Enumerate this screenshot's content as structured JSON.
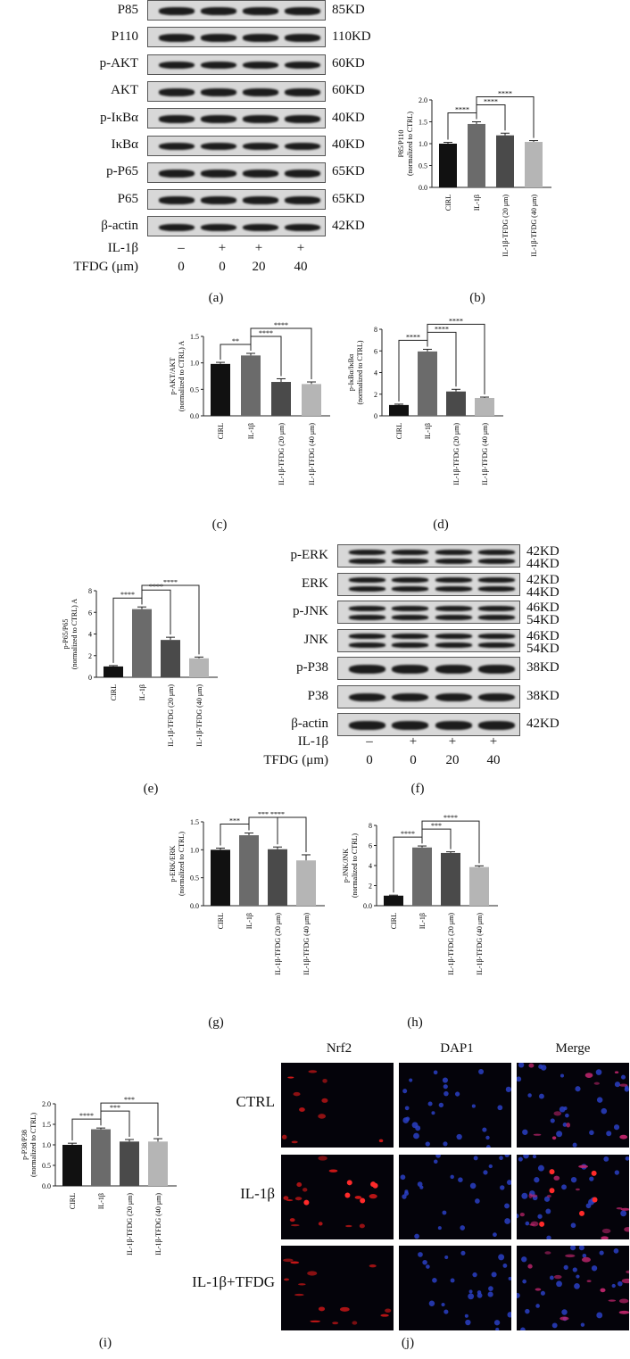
{
  "panel_labels": [
    "(a)",
    "(b)",
    "(c)",
    "(d)",
    "(e)",
    "(f)",
    "(g)",
    "(h)",
    "(i)",
    "(j)"
  ],
  "blot_a": {
    "rows": [
      {
        "label": "P85",
        "kd": "85KD"
      },
      {
        "label": "P110",
        "kd": "110KD"
      },
      {
        "label": "p-AKT",
        "kd": "60KD"
      },
      {
        "label": "AKT",
        "kd": "60KD"
      },
      {
        "label": "p-IκBα",
        "kd": "40KD"
      },
      {
        "label": "IκBα",
        "kd": "40KD"
      },
      {
        "label": "p-P65",
        "kd": "65KD"
      },
      {
        "label": "P65",
        "kd": "65KD"
      },
      {
        "label": "β-actin",
        "kd": "42KD"
      }
    ],
    "group_rows": [
      {
        "label": "IL-1β",
        "values": [
          "–",
          "+",
          "+",
          "+"
        ]
      },
      {
        "label": "TFDG (μm)",
        "values": [
          "0",
          "0",
          "20",
          "40"
        ]
      }
    ]
  },
  "blot_f": {
    "rows": [
      {
        "label": "p-ERK",
        "kd": [
          "42KD",
          "44KD"
        ]
      },
      {
        "label": "ERK",
        "kd": [
          "42KD",
          "44KD"
        ]
      },
      {
        "label": "p-JNK",
        "kd": [
          "46KD",
          "54KD"
        ]
      },
      {
        "label": "JNK",
        "kd": [
          "46KD",
          "54KD"
        ]
      },
      {
        "label": "p-P38",
        "kd": [
          "38KD"
        ]
      },
      {
        "label": "P38",
        "kd": [
          "38KD"
        ]
      },
      {
        "label": "β-actin",
        "kd": [
          "42KD"
        ]
      }
    ],
    "group_rows": [
      {
        "label": "IL-1β",
        "values": [
          "–",
          "+",
          "+",
          "+"
        ]
      },
      {
        "label": "TFDG (μm)",
        "values": [
          "0",
          "0",
          "20",
          "40"
        ]
      }
    ]
  },
  "chart_data": [
    {
      "panel": "b",
      "type": "bar",
      "categories": [
        "CIRL",
        "IL-1β",
        "IL-1β-TFDG (20 μm)",
        "IL-1β-TFDG (40 μm)"
      ],
      "values": [
        1.0,
        1.45,
        1.19,
        1.04
      ],
      "errors": [
        0.03,
        0.05,
        0.05,
        0.03
      ],
      "colors": [
        "#111111",
        "#6b6b6b",
        "#4a4a4a",
        "#b5b5b5"
      ],
      "ylabel": [
        "P85/P110",
        "(normalized to CTRL)"
      ],
      "ylim": [
        0,
        2.0
      ],
      "yticks": [
        "0.0",
        "0.5",
        "1.0",
        "1.5",
        "2.0"
      ],
      "significance": [
        {
          "from": 0,
          "to": 1,
          "label": "****"
        },
        {
          "from": 1,
          "to": 2,
          "label": "****"
        },
        {
          "from": 1,
          "to": 3,
          "label": "****"
        }
      ]
    },
    {
      "panel": "c",
      "type": "bar",
      "categories": [
        "CIRL",
        "IL-1β",
        "IL-1β-TFDG (20 μm)",
        "IL-1β-TFDG (40 μm)"
      ],
      "values": [
        0.98,
        1.14,
        0.64,
        0.6
      ],
      "errors": [
        0.03,
        0.04,
        0.06,
        0.04
      ],
      "colors": [
        "#111111",
        "#6b6b6b",
        "#4a4a4a",
        "#b5b5b5"
      ],
      "ylabel": [
        "p-AKT/AKT",
        "(normalized to CTRL) A"
      ],
      "ylim": [
        0,
        1.5
      ],
      "yticks": [
        "0.0",
        "0.5",
        "1.0",
        "1.5"
      ],
      "significance": [
        {
          "from": 0,
          "to": 1,
          "label": "**"
        },
        {
          "from": 1,
          "to": 2,
          "label": "****"
        },
        {
          "from": 1,
          "to": 3,
          "label": "****"
        }
      ]
    },
    {
      "panel": "d",
      "type": "bar",
      "categories": [
        "CIRL",
        "IL-1β",
        "IL-1β-TFDG (20 μm)",
        "IL-1β-TFDG (40 μm)"
      ],
      "values": [
        1.0,
        5.95,
        2.25,
        1.65
      ],
      "errors": [
        0.08,
        0.2,
        0.2,
        0.08
      ],
      "colors": [
        "#111111",
        "#6b6b6b",
        "#4a4a4a",
        "#b5b5b5"
      ],
      "ylabel": [
        "p-IκBα/IκBα",
        "(normalized to CTRL)"
      ],
      "ylim": [
        0,
        8
      ],
      "yticks": [
        "0",
        "2",
        "4",
        "6",
        "8"
      ],
      "significance": [
        {
          "from": 0,
          "to": 1,
          "label": "****"
        },
        {
          "from": 1,
          "to": 2,
          "label": "****"
        },
        {
          "from": 1,
          "to": 3,
          "label": "****"
        }
      ]
    },
    {
      "panel": "e",
      "type": "bar",
      "categories": [
        "CIRL",
        "IL-1β",
        "IL-1β-TFDG (20 μm)",
        "IL-1β-TFDG (40 μm)"
      ],
      "values": [
        1.0,
        6.3,
        3.45,
        1.75
      ],
      "errors": [
        0.08,
        0.2,
        0.25,
        0.12
      ],
      "colors": [
        "#111111",
        "#6b6b6b",
        "#4a4a4a",
        "#b5b5b5"
      ],
      "ylabel": [
        "p-P65/P65",
        "(normalized to CTRL) A"
      ],
      "ylim": [
        0,
        8
      ],
      "yticks": [
        "0",
        "2",
        "4",
        "6",
        "8"
      ],
      "significance": [
        {
          "from": 0,
          "to": 1,
          "label": "****"
        },
        {
          "from": 1,
          "to": 2,
          "label": "****"
        },
        {
          "from": 1,
          "to": 3,
          "label": "****"
        }
      ]
    },
    {
      "panel": "g",
      "type": "bar",
      "categories": [
        "CIRL",
        "IL-1β",
        "IL-1β-TFDG (20 μm)",
        "IL-1β-TFDG (40 μm)"
      ],
      "values": [
        1.0,
        1.26,
        1.01,
        0.81
      ],
      "errors": [
        0.03,
        0.04,
        0.04,
        0.1
      ],
      "colors": [
        "#111111",
        "#6b6b6b",
        "#4a4a4a",
        "#b5b5b5"
      ],
      "ylabel": [
        "p-ERK/ERK",
        "(normalized to CTRL)"
      ],
      "ylim": [
        0,
        1.5
      ],
      "yticks": [
        "0.0",
        "0.5",
        "1.0",
        "1.5"
      ],
      "significance": [
        {
          "from": 0,
          "to": 1,
          "label": "***"
        },
        {
          "from": 1,
          "to": 2,
          "label": "***"
        },
        {
          "from": 1,
          "to": 3,
          "label": "****"
        }
      ]
    },
    {
      "panel": "h",
      "type": "bar",
      "categories": [
        "CIRL",
        "IL-1β",
        "IL-1β-TFDG (20 μm)",
        "IL-1β-TFDG (40 μm)"
      ],
      "values": [
        1.0,
        5.8,
        5.25,
        3.85
      ],
      "errors": [
        0.05,
        0.15,
        0.12,
        0.12
      ],
      "colors": [
        "#111111",
        "#6b6b6b",
        "#4a4a4a",
        "#b5b5b5"
      ],
      "ylabel": [
        "p-JNK/JNK",
        "(normalized to CTRL)"
      ],
      "ylim": [
        0,
        8
      ],
      "yticks": [
        "0.0",
        "2",
        "4",
        "6",
        "8"
      ],
      "significance": [
        {
          "from": 0,
          "to": 1,
          "label": "****"
        },
        {
          "from": 1,
          "to": 2,
          "label": "***"
        },
        {
          "from": 1,
          "to": 3,
          "label": "****"
        }
      ]
    },
    {
      "panel": "i",
      "type": "bar",
      "categories": [
        "CIRL",
        "IL-1β",
        "IL-1β-TFDG (20 μm)",
        "IL-1β-TFDG (40 μm)"
      ],
      "values": [
        1.0,
        1.38,
        1.08,
        1.08
      ],
      "errors": [
        0.04,
        0.03,
        0.05,
        0.07
      ],
      "colors": [
        "#111111",
        "#6b6b6b",
        "#4a4a4a",
        "#b5b5b5"
      ],
      "ylabel": [
        "p-P38/P38",
        "(normalized to CTRL)"
      ],
      "ylim": [
        0,
        2.0
      ],
      "yticks": [
        "0.0",
        "0.5",
        "1.0",
        "1.5",
        "2.0"
      ],
      "significance": [
        {
          "from": 0,
          "to": 1,
          "label": "****"
        },
        {
          "from": 1,
          "to": 2,
          "label": "***"
        },
        {
          "from": 1,
          "to": 3,
          "label": "***"
        }
      ]
    }
  ],
  "micrographs": {
    "columns": [
      "Nrf2",
      "DAP1",
      "Merge"
    ],
    "rows": [
      "CTRL",
      "IL-1β",
      "IL-1β+TFDG"
    ]
  }
}
